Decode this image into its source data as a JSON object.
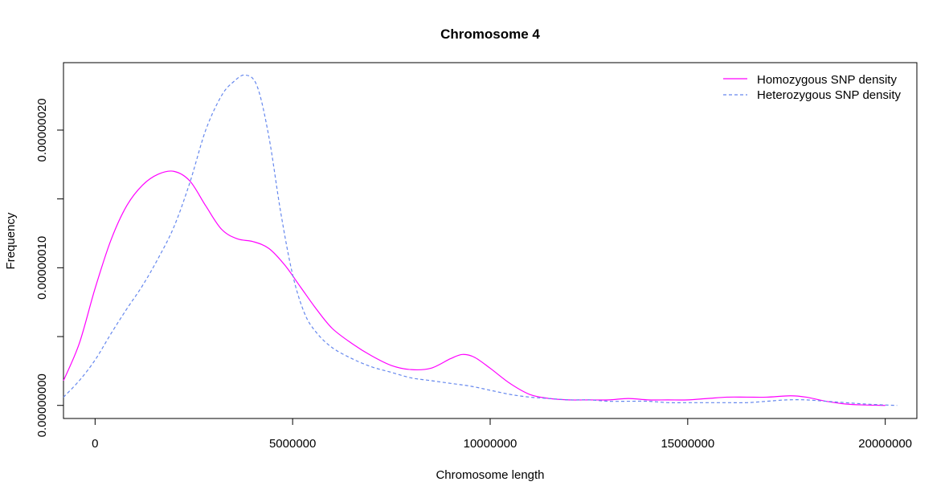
{
  "chart_data": {
    "type": "line",
    "title": "Chromosome 4",
    "xlabel": "Chromosome length",
    "ylabel": "Frequency",
    "xlim": [
      -800000,
      20800000
    ],
    "ylim": [
      -9.5e-09,
      2.49e-07
    ],
    "x_ticks": [
      0,
      5000000,
      10000000,
      15000000,
      20000000
    ],
    "x_tick_labels": [
      "0",
      "5000000",
      "10000000",
      "15000000",
      "20000000"
    ],
    "y_ticks": [
      0,
      5e-08,
      1e-07,
      1.5e-07,
      2e-07
    ],
    "y_tick_labels": [
      "0.00000000",
      "",
      "0.00000010",
      "",
      "0.00000020"
    ],
    "grid": false,
    "legend_position": "top-right",
    "series": [
      {
        "name": "Homozygous SNP density",
        "color": "#ff00ff",
        "dash": "solid",
        "x": [
          -800000,
          -400000,
          0,
          400000,
          800000,
          1200000,
          1600000,
          2000000,
          2400000,
          2800000,
          3200000,
          3600000,
          4000000,
          4400000,
          4800000,
          5200000,
          5600000,
          6000000,
          6500000,
          7000000,
          7500000,
          8000000,
          8500000,
          9000000,
          9300000,
          9600000,
          10000000,
          10500000,
          11000000,
          11500000,
          12000000,
          12500000,
          13000000,
          13500000,
          14000000,
          14500000,
          15000000,
          15500000,
          16000000,
          16500000,
          17000000,
          17600000,
          18000000,
          18500000,
          19000000,
          19500000,
          20000000
        ],
        "values": [
          1.8e-08,
          4.5e-08,
          8.5e-08,
          1.2e-07,
          1.45e-07,
          1.6e-07,
          1.68e-07,
          1.7e-07,
          1.63e-07,
          1.45e-07,
          1.28e-07,
          1.21e-07,
          1.19e-07,
          1.14e-07,
          1.02e-07,
          8.6e-08,
          7e-08,
          5.6e-08,
          4.5e-08,
          3.6e-08,
          2.9e-08,
          2.6e-08,
          2.7e-08,
          3.4e-08,
          3.7e-08,
          3.5e-08,
          2.7e-08,
          1.6e-08,
          8e-09,
          5e-09,
          4e-09,
          4e-09,
          4e-09,
          5e-09,
          4e-09,
          4e-09,
          4e-09,
          5e-09,
          6e-09,
          6e-09,
          6e-09,
          7e-09,
          6e-09,
          3e-09,
          1e-09,
          3e-10,
          0.0
        ]
      },
      {
        "name": "Heterozygous SNP density",
        "color": "#6688ee",
        "dash": "dashed",
        "x": [
          -800000,
          -400000,
          0,
          400000,
          800000,
          1200000,
          1600000,
          2000000,
          2400000,
          2800000,
          3200000,
          3500000,
          3800000,
          4100000,
          4400000,
          4700000,
          5000000,
          5300000,
          5600000,
          6000000,
          6500000,
          7000000,
          7500000,
          8000000,
          8500000,
          9000000,
          9500000,
          10000000,
          10500000,
          11000000,
          11500000,
          12000000,
          12500000,
          13000000,
          13500000,
          14000000,
          14500000,
          15000000,
          15500000,
          16000000,
          16500000,
          17000000,
          17500000,
          18000000,
          18500000,
          19000000,
          19500000,
          20000000,
          20300000
        ],
        "values": [
          6e-09,
          1.8e-08,
          3.3e-08,
          5.2e-08,
          7e-08,
          8.7e-08,
          1.07e-07,
          1.3e-07,
          1.62e-07,
          2e-07,
          2.25e-07,
          2.35e-07,
          2.4e-07,
          2.32e-07,
          1.95e-07,
          1.4e-07,
          9.5e-08,
          6.7e-08,
          5.3e-08,
          4.2e-08,
          3.4e-08,
          2.8e-08,
          2.4e-08,
          2e-08,
          1.8e-08,
          1.6e-08,
          1.4e-08,
          1.1e-08,
          8e-09,
          6e-09,
          5e-09,
          4e-09,
          4e-09,
          3e-09,
          3e-09,
          3e-09,
          2e-09,
          2e-09,
          2e-09,
          2e-09,
          2e-09,
          3e-09,
          4e-09,
          4e-09,
          3e-09,
          2e-09,
          1e-09,
          3e-10,
          0.0
        ]
      }
    ]
  }
}
